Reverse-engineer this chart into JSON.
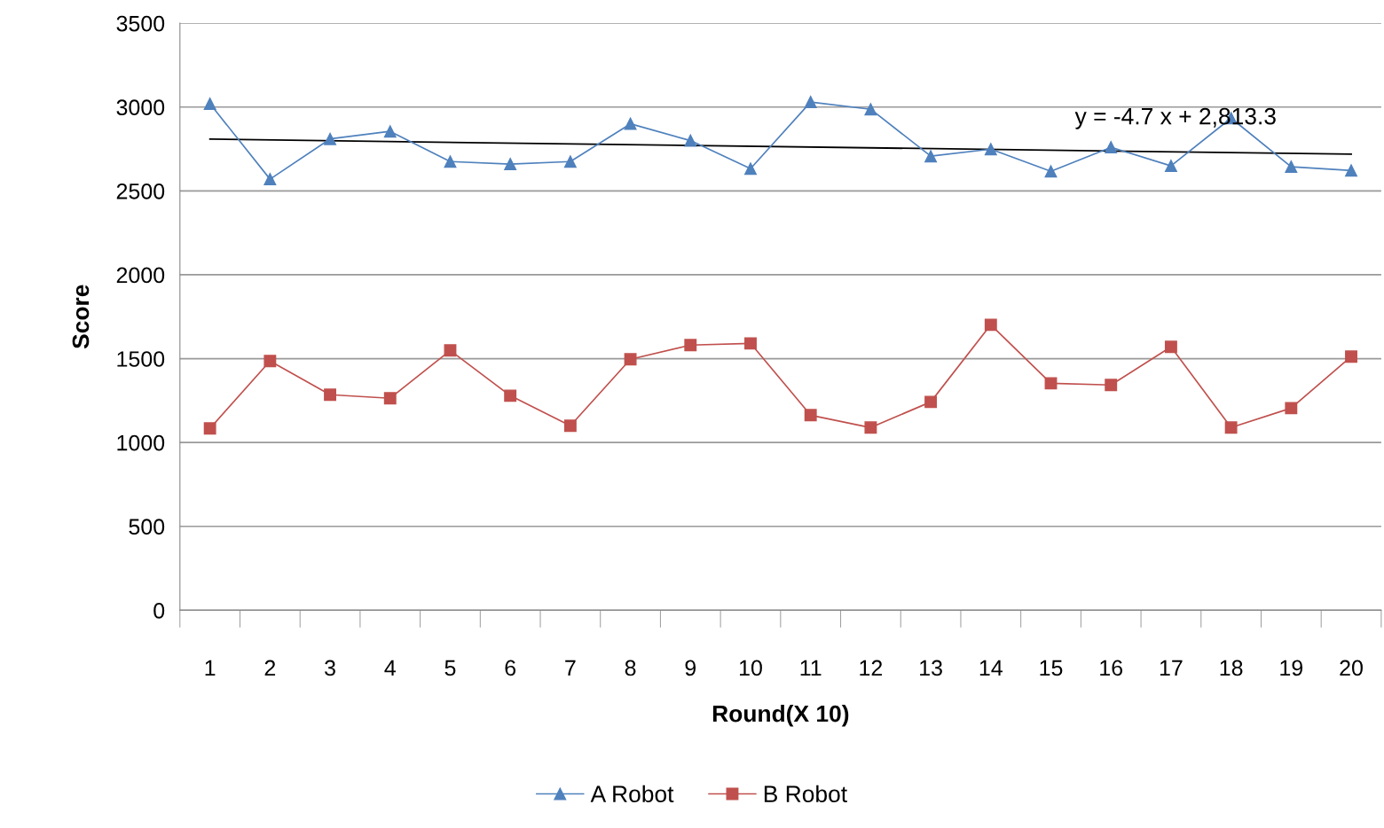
{
  "chart_data": {
    "type": "line",
    "xlabel": "Round(X 10)",
    "ylabel": "Score",
    "categories": [
      "1",
      "2",
      "3",
      "4",
      "5",
      "6",
      "7",
      "8",
      "9",
      "10",
      "11",
      "12",
      "13",
      "14",
      "15",
      "16",
      "17",
      "18",
      "19",
      "20"
    ],
    "series": [
      {
        "name": "A Robot",
        "color": "#4f81bd",
        "marker": "triangle",
        "values": [
          3020,
          2570,
          2810,
          2855,
          2675,
          2660,
          2675,
          2900,
          2800,
          2633,
          3030,
          2987,
          2707,
          2749,
          2617,
          2760,
          2649,
          2934,
          2644,
          2622
        ]
      },
      {
        "name": "B Robot",
        "color": "#c0504d",
        "marker": "square",
        "values": [
          1084,
          1486,
          1285,
          1264,
          1549,
          1279,
          1100,
          1496,
          1581,
          1591,
          1163,
          1089,
          1242,
          1702,
          1353,
          1343,
          1570,
          1089,
          1205,
          1512
        ]
      },
      {
        "color": "#000000",
        "marker": "none",
        "x": [
          "1",
          "20"
        ],
        "values": [
          2808.6,
          2719.3
        ]
      }
    ],
    "annotations": [
      "y = -4.7 x + 2,813.3"
    ],
    "ylim": [
      0,
      3500
    ],
    "yticks": [
      0,
      500,
      1000,
      1500,
      2000,
      2500,
      3000,
      3500
    ],
    "grid": "y",
    "legend": "bottom"
  }
}
